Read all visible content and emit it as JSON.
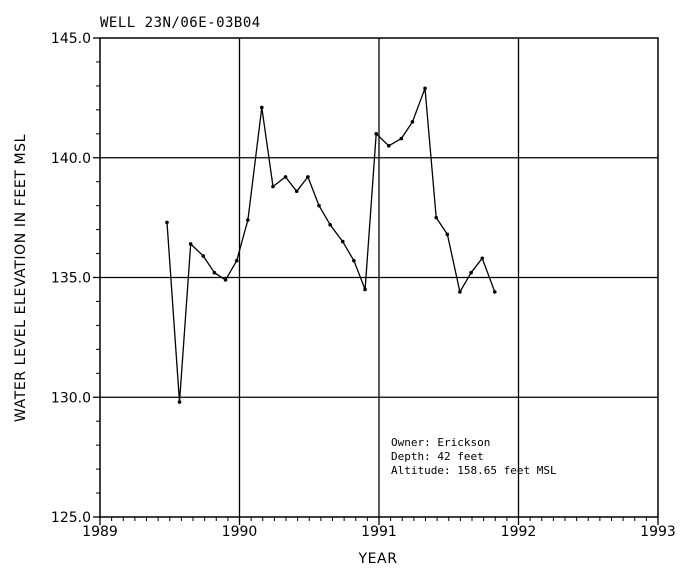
{
  "chart_data": {
    "type": "line",
    "title": "WELL 23N/06E-03B04",
    "xlabel": "YEAR",
    "ylabel": "WATER LEVEL ELEVATION IN FEET MSL",
    "xlim": [
      1989,
      1993
    ],
    "ylim": [
      125.0,
      145.0
    ],
    "x_ticks": [
      1989,
      1990,
      1991,
      1992,
      1993
    ],
    "x_tick_labels": [
      "1989",
      "1990",
      "1991",
      "1992",
      "1993"
    ],
    "y_ticks": [
      125.0,
      130.0,
      135.0,
      140.0,
      145.0
    ],
    "y_tick_labels": [
      "125.0",
      "130.0",
      "135.0",
      "140.0",
      "145.0"
    ],
    "grid": true,
    "line_color": "#000000",
    "series": [
      {
        "x": [
          1989.48,
          1989.57,
          1989.65,
          1989.74,
          1989.82,
          1989.9,
          1989.98,
          1990.06,
          1990.16,
          1990.24,
          1990.33,
          1990.41,
          1990.49,
          1990.57,
          1990.65,
          1990.74,
          1990.82,
          1990.9,
          1990.98,
          1991.07,
          1991.16,
          1991.24,
          1991.33,
          1991.41,
          1991.49,
          1991.58,
          1991.66,
          1991.74,
          1991.83
        ],
        "y": [
          137.3,
          129.8,
          136.4,
          135.9,
          135.2,
          134.9,
          135.7,
          137.4,
          142.1,
          138.8,
          139.2,
          138.6,
          139.2,
          138.0,
          137.2,
          136.5,
          135.7,
          134.5,
          141.0,
          140.5,
          140.8,
          141.5,
          142.9,
          137.5,
          136.8,
          134.4,
          135.2,
          135.8,
          134.4
        ]
      }
    ],
    "annotation": {
      "lines": [
        "Owner: Erickson",
        "Depth: 42 feet",
        "Altitude: 158.65 feet MSL"
      ]
    }
  }
}
